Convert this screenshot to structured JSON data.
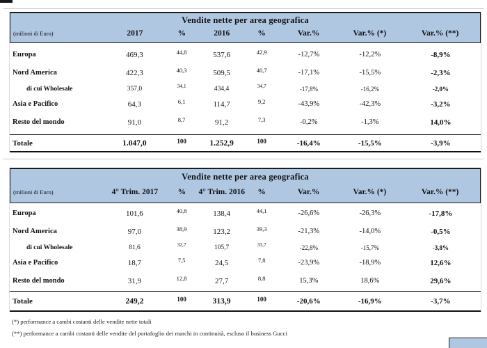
{
  "colors": {
    "header_blue": "#b0c7e2",
    "band_border": "#1c1c1c",
    "rule_black": "#111111",
    "hairline_gray": "#c9c9c9"
  },
  "footnotes": [
    "(*) performance a cambi costanti delle vendite nette totali",
    "(**) performance a cambi costanti delle vendite del portafoglio dei marchi in continuità, escluso il business Gucci"
  ],
  "tables": [
    {
      "title": "Vendite nette per area geografica",
      "unit_label": "(milioni di Euro)",
      "columns": [
        "2017",
        "%",
        "2016",
        "%",
        "Var.%",
        "Var.% (*)",
        "Var.% (**)"
      ],
      "rows": [
        {
          "id": "europa",
          "label": "Europa",
          "small": false,
          "values": [
            "469,3",
            "44,8",
            "537,6",
            "42,9",
            "-12,7%",
            "-12,2%",
            "-8,9%"
          ]
        },
        {
          "id": "nord-america",
          "label": "Nord America",
          "small": false,
          "values": [
            "422,3",
            "40,3",
            "509,5",
            "40,7",
            "-17,1%",
            "-15,5%",
            "-2,3%"
          ]
        },
        {
          "id": "wholesale",
          "label": "di cui Wholesale",
          "small": true,
          "values": [
            "357,0",
            "34,1",
            "434,4",
            "34,7",
            "-17,8%",
            "-16,2%",
            "-2,0%"
          ]
        },
        {
          "id": "asia-pacifico",
          "label": "Asia e Pacifico",
          "small": false,
          "values": [
            "64,3",
            "6,1",
            "114,7",
            "9,2",
            "-43,9%",
            "-42,3%",
            "-3,2%"
          ]
        },
        {
          "id": "resto-del-mondo",
          "label": "Resto del mondo",
          "small": false,
          "values": [
            "91,0",
            "8,7",
            "91,2",
            "7,3",
            "-0,2%",
            "-1,3%",
            "14,0%"
          ]
        }
      ],
      "total": {
        "label": "Totale",
        "values": [
          "1.047,0",
          "100",
          "1.252,9",
          "100",
          "-16,4%",
          "-15,5%",
          "-3,9%"
        ]
      }
    },
    {
      "title": "Vendite nette per area geografica",
      "unit_label": "(milioni di Euro)",
      "columns": [
        "4° Trim. 2017",
        "%",
        "4° Trim. 2016",
        "%",
        "Var.%",
        "Var.% (*)",
        "Var.% (**)"
      ],
      "rows": [
        {
          "id": "europa",
          "label": "Europa",
          "small": false,
          "values": [
            "101,6",
            "40,8",
            "138,4",
            "44,1",
            "-26,6%",
            "-26,3%",
            "-17,8%"
          ]
        },
        {
          "id": "nord-america",
          "label": "Nord America",
          "small": false,
          "values": [
            "97,0",
            "38,9",
            "123,2",
            "39,3",
            "-21,3%",
            "-14,0%",
            "-0,5%"
          ]
        },
        {
          "id": "wholesale",
          "label": "di cui Wholesale",
          "small": true,
          "values": [
            "81,6",
            "32,7",
            "105,7",
            "33,7",
            "-22,8%",
            "-15,7%",
            "-3,8%"
          ]
        },
        {
          "id": "asia-pacifico",
          "label": "Asia e Pacifico",
          "small": false,
          "values": [
            "18,7",
            "7,5",
            "24,5",
            "7,8",
            "-23,9%",
            "-18,9%",
            "12,6%"
          ]
        },
        {
          "id": "resto-del-mondo",
          "label": "Resto del mondo",
          "small": false,
          "values": [
            "31,9",
            "12,8",
            "27,7",
            "8,8",
            "15,3%",
            "18,6%",
            "29,6%"
          ]
        }
      ],
      "total": {
        "label": "Totale",
        "values": [
          "249,2",
          "100",
          "313,9",
          "100",
          "-20,6%",
          "-16,9%",
          "-3,7%"
        ]
      }
    }
  ]
}
